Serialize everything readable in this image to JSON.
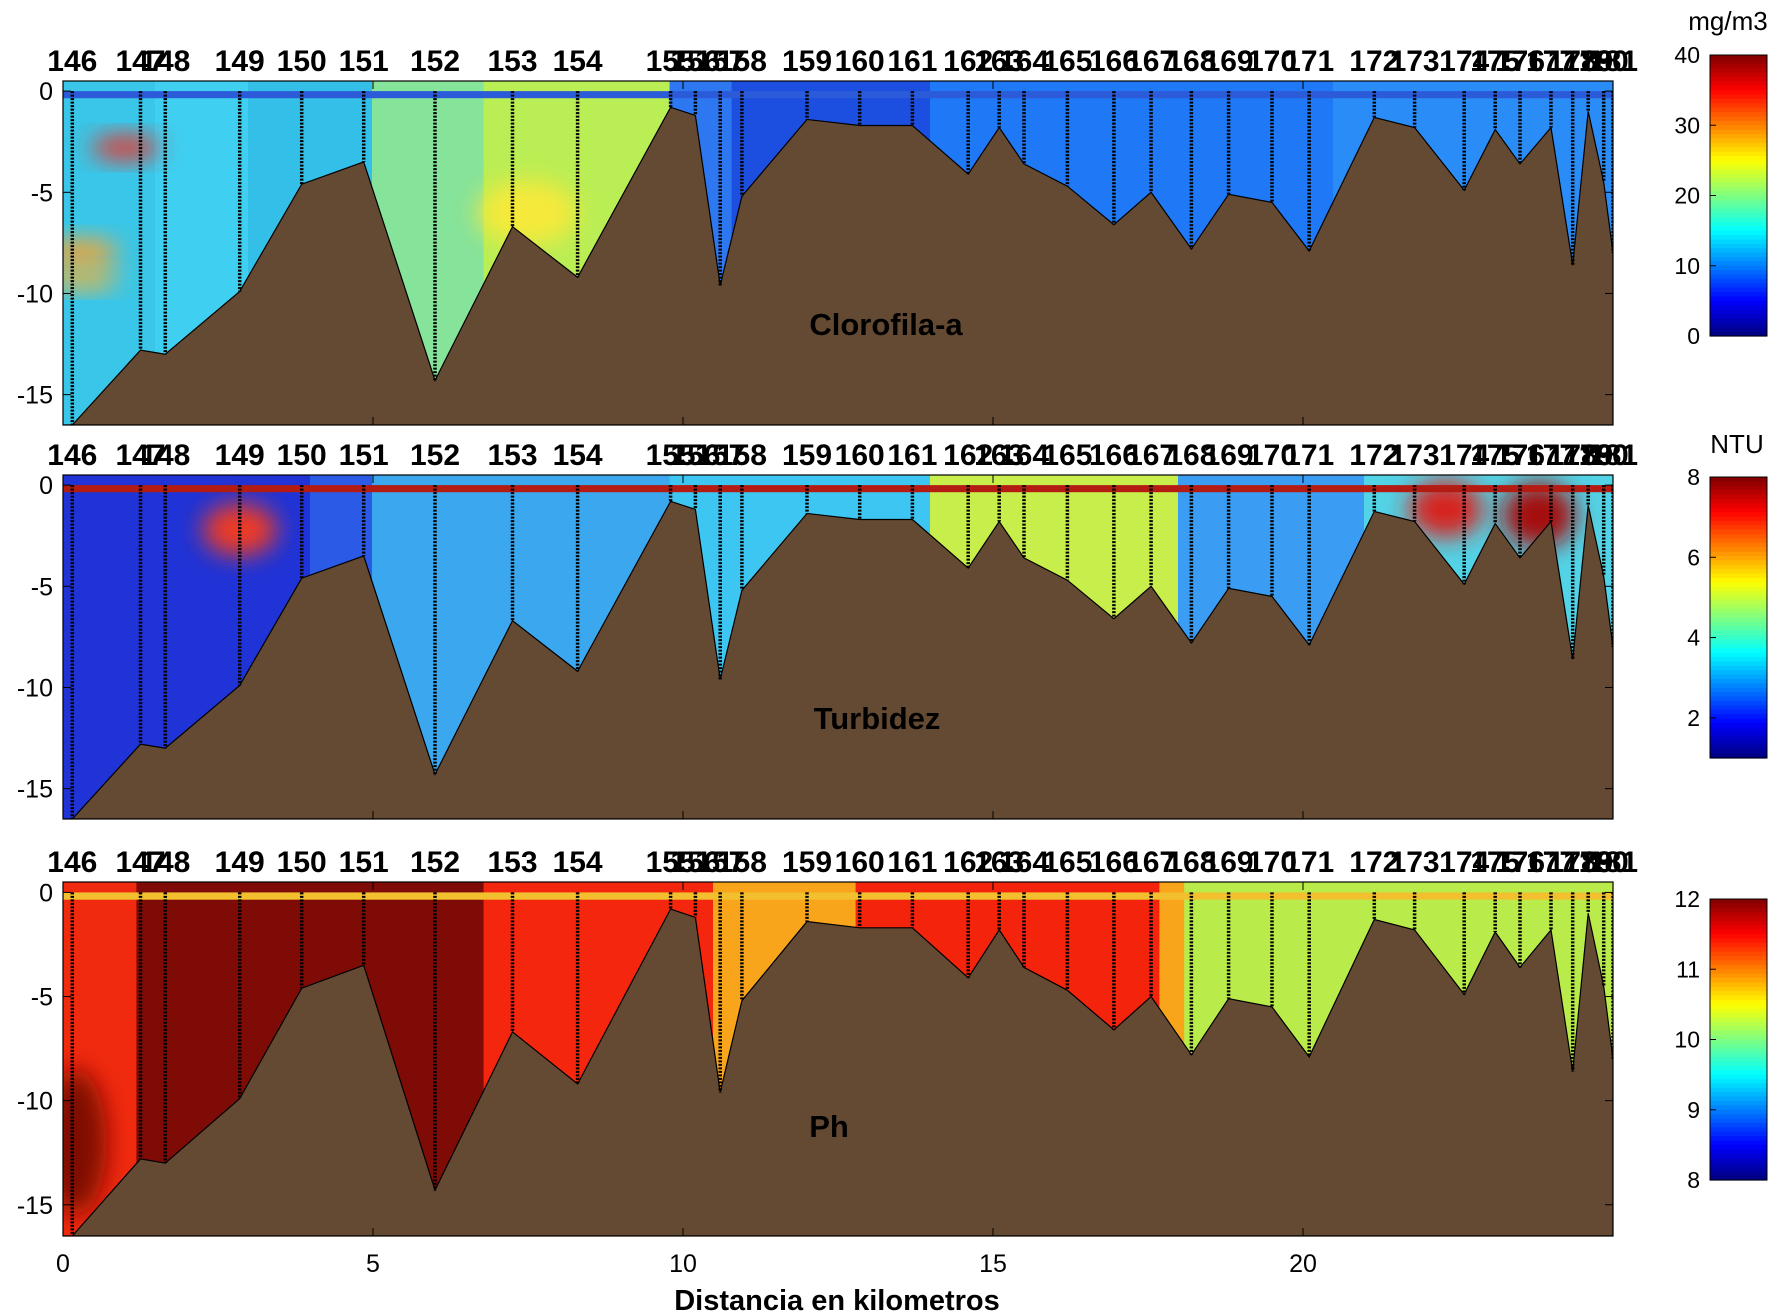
{
  "chart_data": [
    {
      "type": "heatmap",
      "title": "Clorofila-a",
      "colorbar": {
        "unit": "mg/m3",
        "min": 0,
        "max": 40,
        "ticks": [
          0,
          10,
          20,
          30,
          40
        ]
      },
      "ylim": [
        -16.5,
        0.5
      ],
      "yticks": [
        0,
        -5,
        -10,
        -15
      ],
      "surface_color": "#2b5bd8",
      "zones": [
        {
          "x0": 0.0,
          "x1": 1.5,
          "color": "#39c6e8"
        },
        {
          "x0": 1.5,
          "x1": 3.0,
          "color": "#3fcff0"
        },
        {
          "x0": 3.0,
          "x1": 5.0,
          "color": "#33bfe8"
        },
        {
          "x0": 5.0,
          "x1": 6.8,
          "color": "#86e39a"
        },
        {
          "x0": 6.8,
          "x1": 9.8,
          "color": "#b9ee55"
        },
        {
          "x0": 9.8,
          "x1": 10.8,
          "color": "#2d78f0"
        },
        {
          "x0": 10.8,
          "x1": 14.0,
          "color": "#1c4fe0"
        },
        {
          "x0": 14.0,
          "x1": 20.5,
          "color": "#1f78f5"
        },
        {
          "x0": 20.5,
          "x1": 25.0,
          "color": "#2a8cf7"
        }
      ],
      "highlights": [
        {
          "x": 1.0,
          "depth": -2.8,
          "rx": 0.55,
          "ry": 0.6,
          "color": "#e8352a"
        },
        {
          "x": 0.3,
          "depth": -8.0,
          "rx": 0.6,
          "ry": 0.7,
          "color": "#f3a535"
        },
        {
          "x": 0.3,
          "depth": -9.3,
          "rx": 0.6,
          "ry": 0.5,
          "color": "#f0b33a"
        },
        {
          "x": 7.5,
          "depth": -6.0,
          "rx": 0.8,
          "ry": 1.6,
          "color": "#f6e93b"
        }
      ]
    },
    {
      "type": "heatmap",
      "title": "Turbidez",
      "colorbar": {
        "unit": "NTU",
        "min": 1,
        "max": 8,
        "ticks": [
          2,
          4,
          6,
          8
        ]
      },
      "ylim": [
        -16.5,
        0.5
      ],
      "yticks": [
        0,
        -5,
        -10,
        -15
      ],
      "surface_color": "#b31b13",
      "zones": [
        {
          "x0": 0.0,
          "x1": 4.0,
          "color": "#1f33d6"
        },
        {
          "x0": 4.0,
          "x1": 5.0,
          "color": "#2b5ae6"
        },
        {
          "x0": 5.0,
          "x1": 9.8,
          "color": "#3aa7ee"
        },
        {
          "x0": 9.8,
          "x1": 14.0,
          "color": "#3ec6f2"
        },
        {
          "x0": 14.0,
          "x1": 18.0,
          "color": "#c7ee4a"
        },
        {
          "x0": 18.0,
          "x1": 21.0,
          "color": "#3a9cf2"
        },
        {
          "x0": 21.0,
          "x1": 25.0,
          "color": "#52d3e6"
        }
      ],
      "highlights": [
        {
          "x": 2.85,
          "depth": -2.2,
          "rx": 0.6,
          "ry": 1.3,
          "color": "#ef3b22"
        },
        {
          "x": 22.3,
          "depth": -1.2,
          "rx": 0.6,
          "ry": 1.4,
          "color": "#d8231a"
        },
        {
          "x": 23.8,
          "depth": -1.5,
          "rx": 0.6,
          "ry": 1.6,
          "color": "#a5100f"
        }
      ]
    },
    {
      "type": "heatmap",
      "title": "Ph",
      "colorbar": {
        "unit": "",
        "min": 8,
        "max": 12,
        "ticks": [
          8,
          9,
          10,
          11,
          12
        ]
      },
      "ylim": [
        -16.5,
        0.5
      ],
      "yticks": [
        0,
        -5,
        -10,
        -15
      ],
      "surface_color": "#f2c02f",
      "zones": [
        {
          "x0": 0.0,
          "x1": 1.2,
          "color": "#f02a0e"
        },
        {
          "x0": 1.2,
          "x1": 6.8,
          "color": "#7e0b05"
        },
        {
          "x0": 6.8,
          "x1": 10.5,
          "color": "#f4260d"
        },
        {
          "x0": 10.5,
          "x1": 12.8,
          "color": "#f8a51b"
        },
        {
          "x0": 12.8,
          "x1": 17.7,
          "color": "#f4230c"
        },
        {
          "x0": 17.7,
          "x1": 18.1,
          "color": "#f8a51b"
        },
        {
          "x0": 18.1,
          "x1": 25.0,
          "color": "#b9ec4a"
        }
      ],
      "highlights": [
        {
          "x": 0.2,
          "depth": -12.0,
          "rx": 0.5,
          "ry": 3.5,
          "color": "#7e0b05"
        }
      ]
    }
  ],
  "stations": {
    "labels": [
      "146",
      "147",
      "148",
      "149",
      "150",
      "151",
      "152",
      "153",
      "154",
      "155",
      "156",
      "157",
      "158",
      "159",
      "160",
      "161",
      "162",
      "163",
      "164",
      "165",
      "166",
      "167",
      "168",
      "169",
      "170",
      "171",
      "172",
      "173",
      "174",
      "175",
      "176",
      "177",
      "178",
      "179",
      "180",
      "181"
    ],
    "x": [
      0.15,
      1.25,
      1.65,
      2.85,
      3.85,
      4.85,
      6.0,
      7.25,
      8.3,
      9.8,
      10.2,
      10.6,
      10.95,
      12.0,
      12.85,
      13.7,
      14.6,
      15.1,
      15.5,
      16.2,
      16.95,
      17.55,
      18.2,
      18.8,
      19.5,
      20.1,
      21.15,
      21.8,
      22.6,
      23.1,
      23.5,
      24.0,
      24.35,
      24.6,
      24.85,
      25.0
    ],
    "depths": [
      -16.5,
      -12.8,
      -13.0,
      -9.9,
      -4.6,
      -3.5,
      -14.3,
      -6.7,
      -9.2,
      -0.8,
      -1.2,
      -9.6,
      -5.2,
      -1.4,
      -1.7,
      -1.7,
      -4.1,
      -1.8,
      -3.6,
      -4.7,
      -6.6,
      -5.0,
      -7.8,
      -5.1,
      -5.5,
      -7.9,
      -1.3,
      -1.8,
      -4.9,
      -1.9,
      -3.6,
      -1.8,
      -8.6,
      -1.0,
      -4.5,
      -8.0
    ]
  },
  "x_axis": {
    "label": "Distancia en kilometros",
    "lim": [
      0,
      25
    ],
    "ticks": [
      0,
      5,
      10,
      15,
      20
    ]
  },
  "bottom_color": "#654a33"
}
